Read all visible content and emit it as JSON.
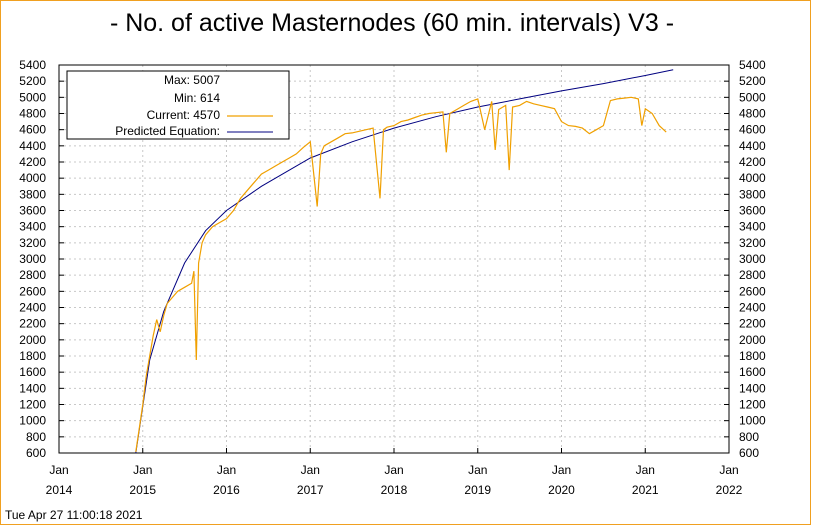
{
  "colors": {
    "frame": "#f0a020",
    "current_series": "#f0a000",
    "predicted_series": "#000080",
    "grid": "#c8c8c8",
    "axis": "#000000"
  },
  "chart_data": {
    "type": "line",
    "title": "- No. of active Masternodes (60 min. intervals) V3 -",
    "xlabel": "",
    "ylabel": "",
    "grid": true,
    "legend_placement": "top-left",
    "xlim": [
      "2014-01",
      "2022-01"
    ],
    "ylim": [
      600,
      5400
    ],
    "y_ticks": [
      600,
      800,
      1000,
      1200,
      1400,
      1600,
      1800,
      2000,
      2200,
      2400,
      2600,
      2800,
      3000,
      3200,
      3400,
      3600,
      3800,
      4000,
      4200,
      4400,
      4600,
      4800,
      5000,
      5200,
      5400
    ],
    "x_ticks": [
      {
        "month": "Jan",
        "year": "2014",
        "date": "2014-01"
      },
      {
        "month": "Jan",
        "year": "2015",
        "date": "2015-01"
      },
      {
        "month": "Jan",
        "year": "2016",
        "date": "2016-01"
      },
      {
        "month": "Jan",
        "year": "2017",
        "date": "2017-01"
      },
      {
        "month": "Jan",
        "year": "2018",
        "date": "2018-01"
      },
      {
        "month": "Jan",
        "year": "2019",
        "date": "2019-01"
      },
      {
        "month": "Jan",
        "year": "2020",
        "date": "2020-01"
      },
      {
        "month": "Jan",
        "year": "2021",
        "date": "2021-01"
      },
      {
        "month": "Jan",
        "year": "2022",
        "date": "2022-01"
      }
    ],
    "legend": {
      "max": "Max: 5007",
      "min": "Min: 614",
      "current": "Current: 4570",
      "predicted": "Predicted Equation:"
    },
    "series": [
      {
        "name": "Current",
        "x": [
          "2014-12",
          "2015-01",
          "2015-01",
          "2015-02",
          "2015-02",
          "2015-03",
          "2015-03",
          "2015-04",
          "2015-04",
          "2015-05",
          "2015-06",
          "2015-07",
          "2015-08",
          "2015-08",
          "2015-08",
          "2015-09",
          "2015-09",
          "2015-10",
          "2015-11",
          "2015-12",
          "2016-01",
          "2016-02",
          "2016-03",
          "2016-04",
          "2016-05",
          "2016-06",
          "2016-07",
          "2016-08",
          "2016-09",
          "2016-10",
          "2016-11",
          "2016-12",
          "2017-01",
          "2017-02",
          "2017-02",
          "2017-03",
          "2017-04",
          "2017-05",
          "2017-06",
          "2017-07",
          "2017-08",
          "2017-09",
          "2017-10",
          "2017-11",
          "2017-11",
          "2017-12",
          "2018-01",
          "2018-02",
          "2018-03",
          "2018-04",
          "2018-05",
          "2018-06",
          "2018-07",
          "2018-08",
          "2018-08",
          "2018-09",
          "2018-10",
          "2018-11",
          "2018-12",
          "2019-01",
          "2019-02",
          "2019-03",
          "2019-03",
          "2019-04",
          "2019-05",
          "2019-05",
          "2019-06",
          "2019-07",
          "2019-08",
          "2019-09",
          "2019-10",
          "2019-11",
          "2019-12",
          "2020-01",
          "2020-02",
          "2020-03",
          "2020-04",
          "2020-05",
          "2020-06",
          "2020-07",
          "2020-08",
          "2020-09",
          "2020-10",
          "2020-11",
          "2020-12",
          "2020-12",
          "2021-01",
          "2021-02",
          "2021-03",
          "2021-04"
        ],
        "values": [
          614,
          1200,
          1550,
          1800,
          2050,
          2250,
          2100,
          2300,
          2450,
          2500,
          2600,
          2650,
          2700,
          2850,
          1750,
          2950,
          3200,
          3300,
          3400,
          3450,
          3500,
          3600,
          3750,
          3850,
          3950,
          4050,
          4100,
          4150,
          4200,
          4250,
          4300,
          4380,
          4450,
          3650,
          4300,
          4400,
          4450,
          4500,
          4550,
          4560,
          4580,
          4600,
          4620,
          3750,
          4600,
          4630,
          4650,
          4700,
          4720,
          4750,
          4780,
          4800,
          4810,
          4820,
          4320,
          4800,
          4850,
          4900,
          4950,
          4980,
          4600,
          4950,
          4350,
          4850,
          4900,
          4100,
          4880,
          4900,
          4950,
          4920,
          4900,
          4880,
          4860,
          4700,
          4650,
          4640,
          4620,
          4550,
          4600,
          4650,
          4960,
          4980,
          4990,
          5000,
          4980,
          4650,
          4860,
          4800,
          4650,
          4570
        ]
      },
      {
        "name": "Predicted Equation",
        "x": [
          "2014-12",
          "2015-02",
          "2015-04",
          "2015-07",
          "2015-10",
          "2016-01",
          "2016-06",
          "2017-01",
          "2017-07",
          "2018-01",
          "2018-07",
          "2019-01",
          "2019-07",
          "2020-01",
          "2020-07",
          "2021-01",
          "2021-05"
        ],
        "values": [
          600,
          1750,
          2350,
          2950,
          3350,
          3600,
          3900,
          4250,
          4450,
          4620,
          4760,
          4880,
          4980,
          5080,
          5170,
          5270,
          5340
        ]
      }
    ]
  },
  "footer": {
    "timestamp": "Tue Apr 27 11:00:18 2021"
  }
}
